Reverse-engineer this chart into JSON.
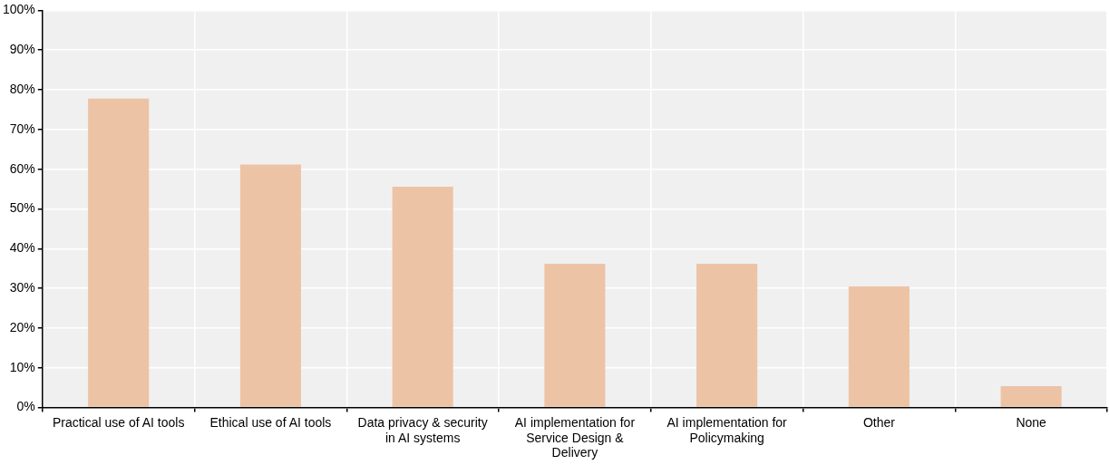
{
  "chart_data": {
    "type": "bar",
    "categories": [
      "Practical use of AI tools",
      "Ethical use of AI tools",
      "Data privacy & security in AI systems",
      "AI implementation for Service Design & Delivery",
      "AI implementation for Policymaking",
      "Other",
      "None"
    ],
    "values": [
      77.8,
      61.2,
      55.6,
      36.2,
      36.2,
      30.5,
      5.4
    ],
    "color": "#edc3a5",
    "ylim": [
      0,
      100
    ],
    "yticks": [
      {
        "value": 0,
        "label": "0%"
      },
      {
        "value": 10,
        "label": "10%"
      },
      {
        "value": 20,
        "label": "20%"
      },
      {
        "value": 30,
        "label": "30%"
      },
      {
        "value": 40,
        "label": "40%"
      },
      {
        "value": 50,
        "label": "50%"
      },
      {
        "value": 60,
        "label": "60%"
      },
      {
        "value": 70,
        "label": "70%"
      },
      {
        "value": 80,
        "label": "80%"
      },
      {
        "value": 90,
        "label": "90%"
      },
      {
        "value": 100,
        "label": "100%"
      }
    ],
    "grid": true,
    "legend": false
  }
}
